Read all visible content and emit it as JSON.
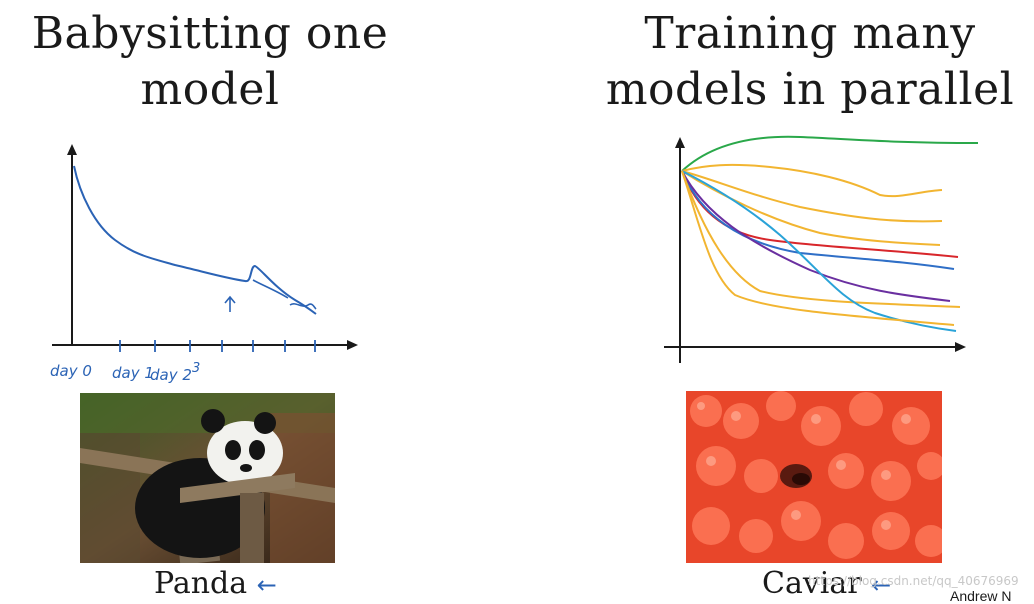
{
  "left": {
    "title_line1": "Babysitting one",
    "title_line2": "model",
    "tick_labels": [
      "day 0",
      "day 1",
      "day 2",
      "3"
    ],
    "photo_caption": "Panda",
    "arrow_glyph": "←"
  },
  "right": {
    "title_line1": "Training many",
    "title_line2": "models in parallel",
    "photo_caption": "Caviar",
    "arrow_glyph": "←"
  },
  "colors": {
    "ink_blue": "#2b63b5",
    "green": "#2aa84a",
    "orange": "#f2b531",
    "red": "#d8262b",
    "purple": "#6a2fa0",
    "cyan": "#2aa3d8",
    "blue": "#2f6fc7"
  },
  "footer": {
    "watermark": "https://blog.csdn.net/qq_40676969",
    "author": "Andrew N"
  }
}
